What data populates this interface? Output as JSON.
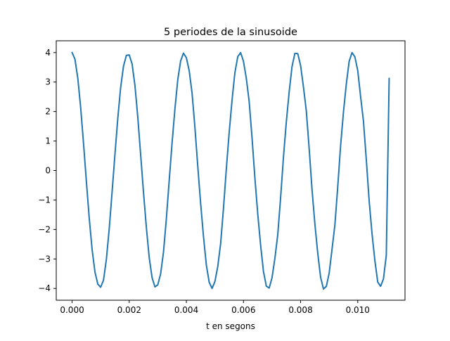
{
  "chart_data": {
    "type": "line",
    "title": "5 periodes de la sinusoide",
    "xlabel": "t en segons",
    "ylabel": "",
    "xlim": [
      -0.000555,
      0.011655
    ],
    "ylim": [
      -4.4,
      4.4
    ],
    "xticks": [
      0.0,
      0.002,
      0.004,
      0.006,
      0.008,
      0.01
    ],
    "xtick_labels": [
      "0.000",
      "0.002",
      "0.004",
      "0.006",
      "0.008",
      "0.010"
    ],
    "yticks": [
      -4,
      -3,
      -2,
      -1,
      0,
      1,
      2,
      3,
      4
    ],
    "ytick_labels": [
      "−4",
      "−3",
      "−2",
      "−1",
      "0",
      "1",
      "2",
      "3",
      "4"
    ],
    "grid": false,
    "legend": "none",
    "series": [
      {
        "color": "#1f77b4",
        "amplitude": 4,
        "frequency_hz": 440,
        "sample_step_s": 0.0001,
        "x": [
          0.0,
          0.0001,
          0.0002,
          0.0003,
          0.0004,
          0.0005,
          0.0006,
          0.0007,
          0.0008,
          0.0009,
          0.001,
          0.0011,
          0.0012,
          0.0013,
          0.0014,
          0.0015,
          0.0016,
          0.0017,
          0.0018,
          0.0019,
          0.002,
          0.0021,
          0.0022,
          0.0023,
          0.0024,
          0.0025,
          0.0026,
          0.0027,
          0.0028,
          0.0029,
          0.003,
          0.0031,
          0.0032,
          0.0033,
          0.0034,
          0.0035,
          0.0036,
          0.0037,
          0.0038,
          0.0039,
          0.004,
          0.0041,
          0.0042,
          0.0043,
          0.0044,
          0.0045,
          0.0046,
          0.0047,
          0.0048,
          0.0049,
          0.005,
          0.0051,
          0.0052,
          0.0053,
          0.0054,
          0.0055,
          0.0056,
          0.0057,
          0.0058,
          0.0059,
          0.006,
          0.0061,
          0.0062,
          0.0063,
          0.0064,
          0.0065,
          0.0066,
          0.0067,
          0.0068,
          0.0069,
          0.007,
          0.0071,
          0.0072,
          0.0073,
          0.0074,
          0.0075,
          0.0076,
          0.0077,
          0.0078,
          0.0079,
          0.008,
          0.0081,
          0.0082,
          0.0083,
          0.0084,
          0.0085,
          0.0086,
          0.0087,
          0.0088,
          0.0089,
          0.009,
          0.0091,
          0.0092,
          0.0093,
          0.0094,
          0.0095,
          0.0096,
          0.0097,
          0.0098,
          0.0099,
          0.01,
          0.0101,
          0.0102,
          0.0103,
          0.0104,
          0.0105,
          0.0106,
          0.0107,
          0.0108,
          0.0109,
          0.011,
          0.0111
        ],
        "y": [
          4.0,
          3.775,
          3.126,
          2.134,
          0.921,
          -0.374,
          -1.617,
          -2.677,
          -3.441,
          -3.853,
          -3.96,
          -3.718,
          -3.013,
          -1.973,
          -0.729,
          0.547,
          1.777,
          2.819,
          3.541,
          3.905,
          3.921,
          3.615,
          2.89,
          1.807,
          0.533,
          -0.747,
          -1.934,
          -2.956,
          -3.634,
          -3.949,
          -3.876,
          -3.504,
          -2.76,
          -1.637,
          -0.336,
          0.934,
          2.09,
          3.084,
          3.718,
          3.98,
          3.824,
          3.384,
          2.623,
          1.463,
          0.138,
          -1.117,
          -2.241,
          -3.206,
          -3.794,
          -4.0,
          -3.766,
          -3.256,
          -2.48,
          -1.285,
          0.06,
          1.296,
          2.389,
          3.321,
          3.862,
          4.0,
          3.703,
          3.121,
          2.331,
          1.105,
          -0.257,
          -1.473,
          -2.532,
          -3.428,
          -3.922,
          -3.987,
          -3.634,
          -2.979,
          -2.177,
          -0.923,
          0.454,
          1.646,
          2.67,
          3.528,
          3.974,
          3.964,
          3.56,
          2.83,
          2.017,
          0.739,
          -0.648,
          -1.814,
          -2.803,
          -3.62,
          -4.018,
          -3.933,
          -3.48,
          -2.675,
          -1.852,
          -0.555,
          0.84,
          1.977,
          2.931,
          3.705,
          4.0,
          3.857,
          3.395,
          2.514,
          1.682,
          0.37,
          -1.029,
          -2.136,
          -3.054,
          -3.782,
          -3.928,
          -3.681,
          -2.879,
          3.12
        ]
      }
    ]
  }
}
